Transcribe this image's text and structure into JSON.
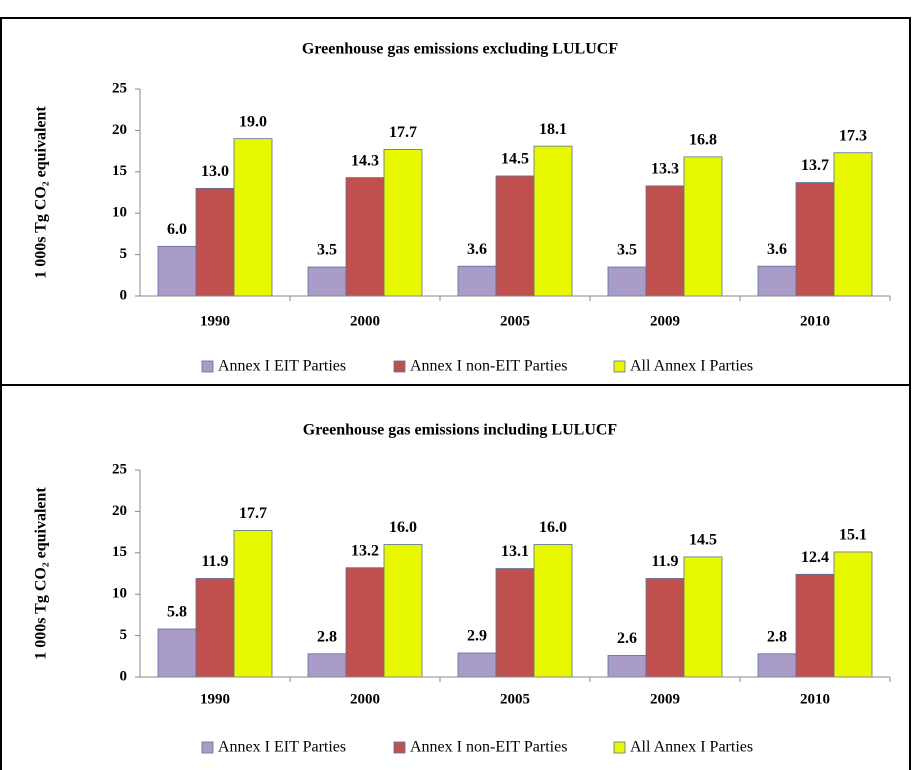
{
  "chart_data": [
    {
      "type": "bar",
      "title": "Greenhouse gas emissions excluding LULUCF",
      "y_label": "1 000s Tg CO₂ equivalent",
      "categories": [
        "1990",
        "2000",
        "2005",
        "2009",
        "2010"
      ],
      "series": [
        {
          "name": "Annex I EIT Parties",
          "color": "#a99cc8",
          "values": [
            6.0,
            3.5,
            3.6,
            3.5,
            3.6
          ],
          "value_labels": [
            "6.0",
            "3.5",
            "3.6",
            "3.5",
            "3.6"
          ]
        },
        {
          "name": "Annex I non-EIT Parties",
          "color": "#c0504d",
          "values": [
            13.0,
            14.3,
            14.5,
            13.3,
            13.7
          ],
          "value_labels": [
            "13.0",
            "14.3",
            "14.5",
            "13.3",
            "13.7"
          ]
        },
        {
          "name": "All Annex I Parties",
          "color": "#e8f800",
          "values": [
            19.0,
            17.7,
            18.1,
            16.8,
            17.3
          ],
          "value_labels": [
            "19.0",
            "17.7",
            "18.1",
            "16.8",
            "17.3"
          ]
        }
      ],
      "ylim": [
        0,
        25
      ],
      "yticks": [
        0,
        5,
        10,
        15,
        20,
        25
      ],
      "grid": false,
      "legend": "bottom"
    },
    {
      "type": "bar",
      "title": "Greenhouse gas emissions including LULUCF",
      "y_label": "1 000s Tg CO₂ equivalent",
      "categories": [
        "1990",
        "2000",
        "2005",
        "2009",
        "2010"
      ],
      "series": [
        {
          "name": "Annex I EIT Parties",
          "color": "#a99cc8",
          "values": [
            5.8,
            2.8,
            2.9,
            2.6,
            2.8
          ],
          "value_labels": [
            "5.8",
            "2.8",
            "2.9",
            "2.6",
            "2.8"
          ]
        },
        {
          "name": "Annex I non-EIT Parties",
          "color": "#c0504d",
          "values": [
            11.9,
            13.2,
            13.1,
            11.9,
            12.4
          ],
          "value_labels": [
            "11.9",
            "13.2",
            "13.1",
            "11.9",
            "12.4"
          ]
        },
        {
          "name": "All Annex I Parties",
          "color": "#e8f800",
          "values": [
            17.7,
            16.0,
            16.0,
            14.5,
            15.1
          ],
          "value_labels": [
            "17.7",
            "16.0",
            "16.0",
            "14.5",
            "15.1"
          ]
        }
      ],
      "ylim": [
        0,
        25
      ],
      "yticks": [
        0,
        5,
        10,
        15,
        20,
        25
      ],
      "grid": false,
      "legend": "bottom"
    }
  ]
}
